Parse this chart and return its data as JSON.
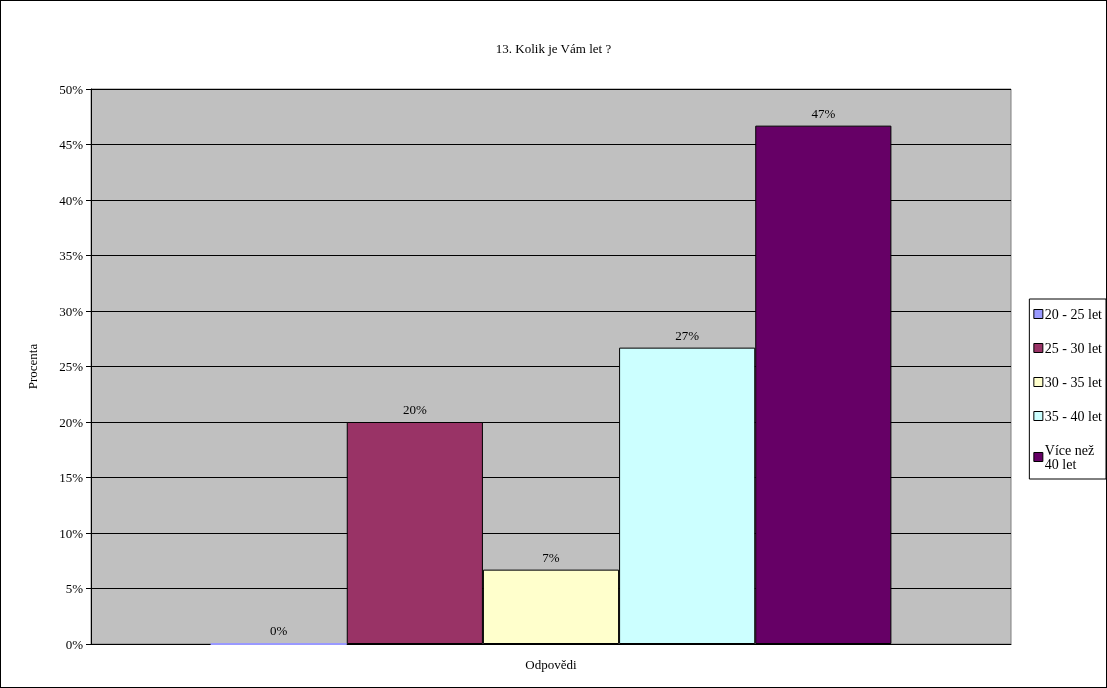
{
  "chart_data": {
    "type": "bar",
    "title": "13. Kolik je Vám let ?",
    "xlabel": "Odpovědi",
    "ylabel": "Procenta",
    "categories": [
      null
    ],
    "series": [
      {
        "name": "20 - 25 let",
        "color": "#9999ff",
        "values": [
          0
        ],
        "value_labels": [
          "0%"
        ]
      },
      {
        "name": "25 - 30 let",
        "color": "#993366",
        "values": [
          20
        ],
        "value_labels": [
          "20%"
        ]
      },
      {
        "name": "30 - 35 let",
        "color": "#ffffcc",
        "values": [
          6.7
        ],
        "value_labels": [
          "7%"
        ]
      },
      {
        "name": "35 - 40 let",
        "color": "#ccffff",
        "values": [
          26.7
        ],
        "value_labels": [
          "27%"
        ]
      },
      {
        "name": "Více než 40 let",
        "color": "#660066",
        "values": [
          46.7
        ],
        "value_labels": [
          "47%"
        ]
      }
    ],
    "ylim": [
      0,
      50
    ],
    "yticks": [
      {
        "value": 0,
        "label": "0%"
      },
      {
        "value": 5,
        "label": "5%"
      },
      {
        "value": 10,
        "label": "10%"
      },
      {
        "value": 15,
        "label": "15%"
      },
      {
        "value": 20,
        "label": "20%"
      },
      {
        "value": 25,
        "label": "25%"
      },
      {
        "value": 30,
        "label": "30%"
      },
      {
        "value": 35,
        "label": "35%"
      },
      {
        "value": 40,
        "label": "40%"
      },
      {
        "value": 45,
        "label": "45%"
      },
      {
        "value": 50,
        "label": "50%"
      }
    ],
    "grid": "y",
    "legend": "right",
    "tick_labels": "y"
  }
}
